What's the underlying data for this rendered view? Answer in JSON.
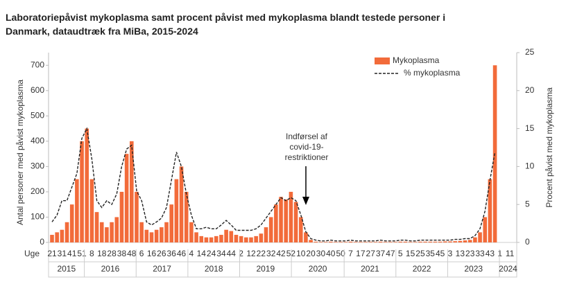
{
  "chart_data": {
    "type": "bar_line",
    "title": [
      "Laboratoriepåvist mykoplasma samt procent påvist med mykoplasma blandt testede personer i",
      "Danmark, dataudtræk fra MiBa, 2015-2024"
    ],
    "xlabel": "Uge",
    "ylabel": "Antal personer med påvist mykoplasma",
    "y2label": "Procent påvist med mykoplasma",
    "categories": [
      "21",
      null,
      "31",
      null,
      "41",
      null,
      "51",
      null,
      "8",
      null,
      "18",
      null,
      "28",
      null,
      "38",
      null,
      "48",
      null,
      "6",
      null,
      "16",
      null,
      "26",
      null,
      "36",
      null,
      "46",
      null,
      "4",
      null,
      "14",
      null,
      "24",
      null,
      "34",
      null,
      "44",
      null,
      "2",
      null,
      "12",
      null,
      "22",
      null,
      "32",
      null,
      "42",
      null,
      "52",
      null,
      "10",
      null,
      "20",
      null,
      "30",
      null,
      "40",
      null,
      "50",
      null,
      "7",
      null,
      "17",
      null,
      "27",
      null,
      "37",
      null,
      "47",
      null,
      "5",
      null,
      "15",
      null,
      "25",
      null,
      "35",
      null,
      "45",
      null,
      "3",
      null,
      "13",
      null,
      "23",
      null,
      "33",
      null,
      "43",
      null,
      "1",
      null,
      "11"
    ],
    "years": [
      "2015",
      "2016",
      "2017",
      "2018",
      "2019",
      "2020",
      "2021",
      "2022",
      "2023",
      "2024"
    ],
    "series": [
      {
        "name": "Mykoplasma",
        "type": "bar",
        "color": "#f26b3a",
        "values": [
          30,
          40,
          50,
          80,
          150,
          250,
          400,
          450,
          250,
          120,
          80,
          60,
          80,
          100,
          200,
          350,
          400,
          200,
          80,
          50,
          40,
          50,
          60,
          80,
          150,
          250,
          300,
          200,
          80,
          40,
          25,
          20,
          20,
          25,
          30,
          50,
          45,
          30,
          25,
          20,
          20,
          25,
          35,
          60,
          100,
          150,
          180,
          170,
          200,
          160,
          100,
          40,
          10,
          3,
          2,
          2,
          3,
          2,
          2,
          2,
          3,
          2,
          2,
          2,
          2,
          2,
          3,
          2,
          2,
          2,
          3,
          3,
          2,
          2,
          3,
          3,
          3,
          3,
          3,
          4,
          4,
          5,
          6,
          8,
          10,
          20,
          40,
          100,
          250,
          700,
          null,
          null,
          null
        ]
      },
      {
        "name": "% mykoplasma",
        "type": "line",
        "axis": "y2",
        "color": "#222222",
        "values": [
          2.7,
          3.6,
          5.5,
          5.5,
          7.3,
          9.1,
          13.7,
          15,
          11,
          5.5,
          4.6,
          5.5,
          5,
          6.4,
          10,
          12.3,
          12.8,
          6.8,
          5.5,
          2.7,
          2.3,
          2.7,
          3.2,
          4.6,
          8.2,
          11.9,
          10,
          6.4,
          3.6,
          1.8,
          1.8,
          2,
          1.8,
          1.8,
          2.3,
          2.9,
          2.3,
          1.6,
          1.6,
          1.6,
          1.6,
          1.8,
          2.3,
          3.2,
          4.1,
          5,
          5.9,
          5.5,
          5.9,
          5.5,
          3.6,
          1.4,
          0.5,
          0.3,
          0.2,
          0.2,
          0.3,
          0.2,
          0.2,
          0.2,
          0.3,
          0.2,
          0.2,
          0.2,
          0.2,
          0.2,
          0.3,
          0.2,
          0.2,
          0.2,
          0.3,
          0.3,
          0.2,
          0.2,
          0.3,
          0.3,
          0.3,
          0.3,
          0.3,
          0.3,
          0.3,
          0.4,
          0.4,
          0.5,
          0.5,
          0.9,
          1.8,
          4.1,
          8.2,
          11.9,
          null,
          null,
          null
        ]
      }
    ],
    "ylim": [
      0,
      750
    ],
    "yticks": [
      0,
      100,
      200,
      300,
      400,
      500,
      600,
      700
    ],
    "y2lim": [
      0,
      25
    ],
    "y2ticks": [
      0,
      5,
      10,
      15,
      20,
      25
    ],
    "annotation": [
      "Indførsel af",
      "covid-19-",
      "restriktioner"
    ],
    "legend": "top-right"
  }
}
